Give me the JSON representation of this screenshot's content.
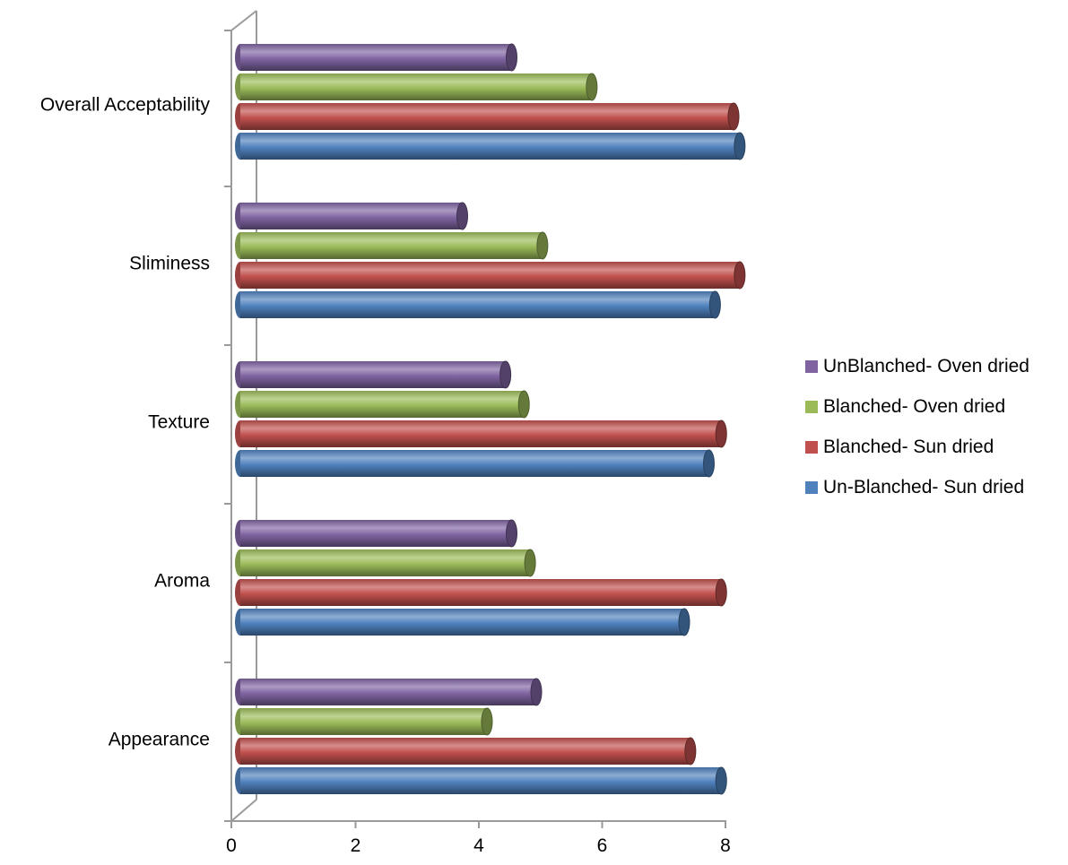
{
  "chart_data": {
    "type": "bar",
    "orientation": "horizontal",
    "categories": [
      "Appearance",
      "Aroma",
      "Texture",
      "Sliminess",
      "Overall Acceptability"
    ],
    "series": [
      {
        "name": "Un-Blanched- Sun dried",
        "color": "#4F81BD",
        "values": [
          7.8,
          7.2,
          7.6,
          7.7,
          8.1
        ]
      },
      {
        "name": "Blanched- Sun dried",
        "color": "#C0504D",
        "values": [
          7.3,
          7.8,
          7.8,
          8.1,
          8.0
        ]
      },
      {
        "name": "Blanched- Oven dried",
        "color": "#9BBB59",
        "values": [
          4.0,
          4.7,
          4.6,
          4.9,
          5.7
        ]
      },
      {
        "name": "UnBlanched- Oven dried",
        "color": "#8064A2",
        "values": [
          4.8,
          4.4,
          4.3,
          3.6,
          4.4
        ]
      }
    ],
    "xlim": [
      0,
      8
    ],
    "xticks": [
      "0",
      "2",
      "4",
      "6",
      "8"
    ],
    "title": "",
    "xlabel": "",
    "ylabel": "",
    "grid": false,
    "legend_position": "right"
  },
  "legend": {
    "items": [
      {
        "label": "UnBlanched- Oven dried",
        "color": "#8064A2"
      },
      {
        "label": "Blanched- Oven dried",
        "color": "#9BBB59"
      },
      {
        "label": "Blanched- Sun dried",
        "color": "#C0504D"
      },
      {
        "label": "Un-Blanched- Sun dried",
        "color": "#4F81BD"
      }
    ]
  }
}
